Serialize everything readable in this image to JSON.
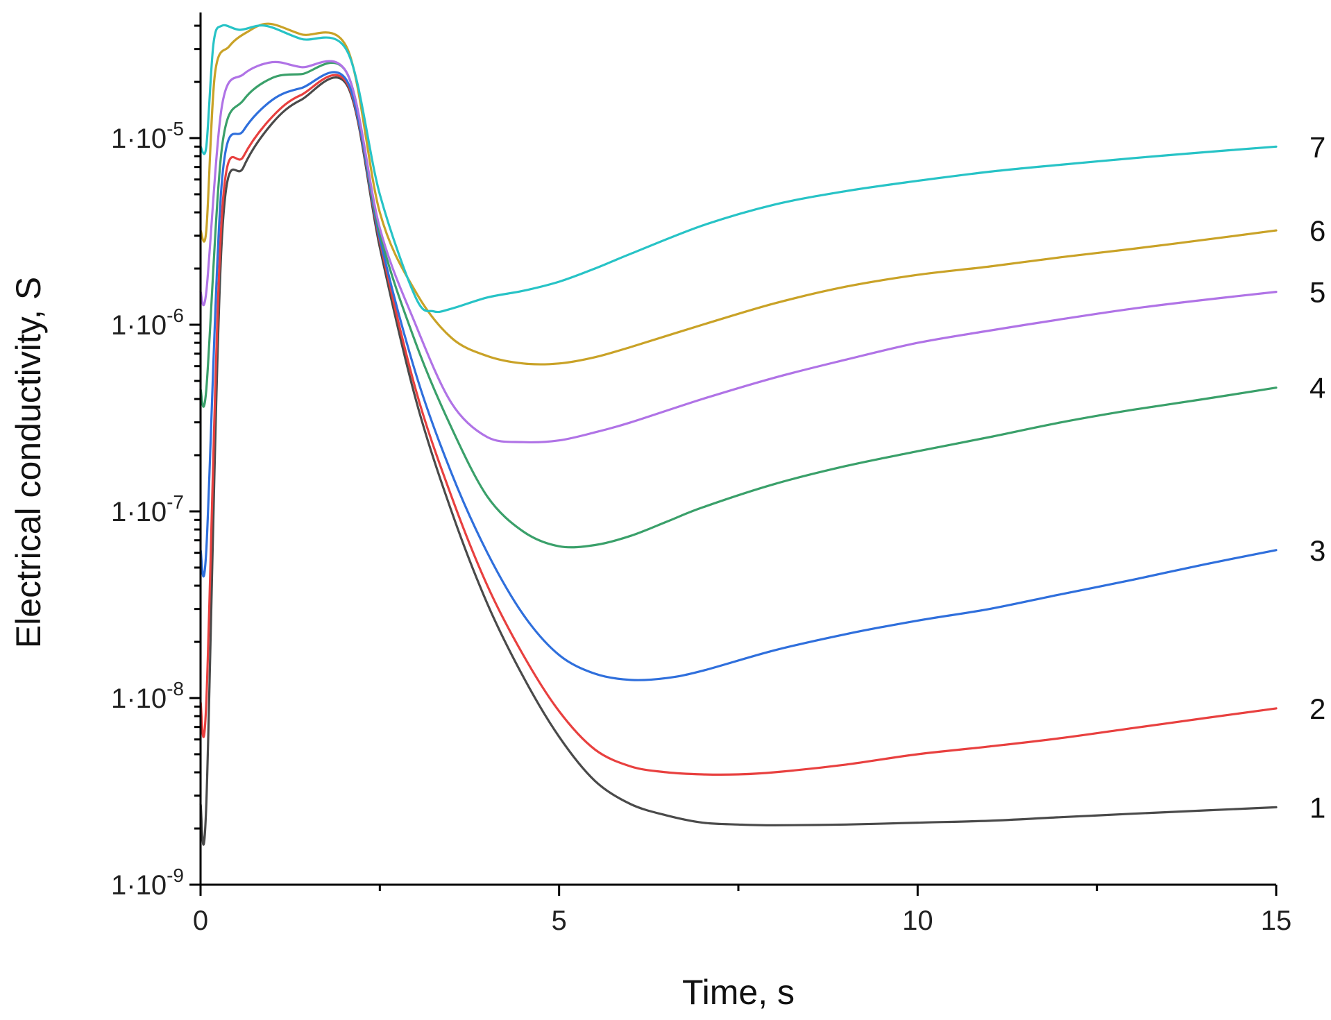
{
  "chart_data": {
    "type": "line",
    "title": "",
    "xlabel": "Time, s",
    "ylabel": "Electrical conductivity, S",
    "yscale": "log",
    "xlim": [
      0,
      15
    ],
    "ylim": [
      1e-09,
      5e-05
    ],
    "grid": false,
    "x_ticks": [
      {
        "value": 0,
        "label": "0"
      },
      {
        "value": 5,
        "label": "5"
      },
      {
        "value": 10,
        "label": "10"
      },
      {
        "value": 15,
        "label": "15"
      }
    ],
    "x_minor_ticks": [
      2.5,
      7.5,
      12.5
    ],
    "y_ticks": [
      {
        "value": 1e-09,
        "mantissa": "1·10",
        "exponent": "-9"
      },
      {
        "value": 1e-08,
        "mantissa": "1·10",
        "exponent": "-8"
      },
      {
        "value": 1e-07,
        "mantissa": "1·10",
        "exponent": "-7"
      },
      {
        "value": 1e-06,
        "mantissa": "1·10",
        "exponent": "-6"
      },
      {
        "value": 1e-05,
        "mantissa": "1·10",
        "exponent": "-5"
      }
    ],
    "series": [
      {
        "name": "1",
        "label": "1",
        "color": "#4a4a4a",
        "x": [
          0,
          0.08,
          0.3,
          0.6,
          1.0,
          1.4,
          2.05,
          2.5,
          3.0,
          3.5,
          4.0,
          4.5,
          5.0,
          5.5,
          6.0,
          6.5,
          7.0,
          7.5,
          8.0,
          9.0,
          10.0,
          11.0,
          12.0,
          13.0,
          14.0,
          15.0
        ],
        "y": [
          2.7e-09,
          2.7e-09,
          3e-06,
          7e-06,
          1.2e-05,
          1.6e-05,
          1.9e-05,
          2.6e-06,
          4e-07,
          1e-07,
          3.2e-08,
          1.3e-08,
          6.2e-09,
          3.6e-09,
          2.7e-09,
          2.35e-09,
          2.15e-09,
          2.1e-09,
          2.08e-09,
          2.1e-09,
          2.15e-09,
          2.2e-09,
          2.3e-09,
          2.4e-09,
          2.5e-09,
          2.6e-09
        ]
      },
      {
        "name": "2",
        "label": "2",
        "color": "#e8403f",
        "x": [
          0,
          0.08,
          0.3,
          0.6,
          1.0,
          1.4,
          2.05,
          2.5,
          3.0,
          3.5,
          4.0,
          4.5,
          5.0,
          5.5,
          6.0,
          6.5,
          7.0,
          7.5,
          8.0,
          9.0,
          10.0,
          11.0,
          12.0,
          13.0,
          14.0,
          15.0
        ],
        "y": [
          9.5e-09,
          9.5e-09,
          4e-06,
          8e-06,
          1.3e-05,
          1.7e-05,
          1.95e-05,
          2.8e-06,
          4.5e-07,
          1.2e-07,
          4e-08,
          1.7e-08,
          8.5e-09,
          5.3e-09,
          4.3e-09,
          4e-09,
          3.9e-09,
          3.9e-09,
          4e-09,
          4.4e-09,
          5e-09,
          5.5e-09,
          6.1e-09,
          6.9e-09,
          7.8e-09,
          8.8e-09
        ]
      },
      {
        "name": "3",
        "label": "3",
        "color": "#2f6fdc",
        "x": [
          0,
          0.08,
          0.3,
          0.6,
          1.0,
          1.4,
          2.05,
          2.5,
          3.0,
          3.5,
          4.0,
          4.5,
          5.0,
          5.5,
          6.0,
          6.5,
          7.0,
          8.0,
          9.0,
          10.0,
          11.0,
          12.0,
          13.0,
          14.0,
          15.0
        ],
        "y": [
          6.2e-08,
          6.2e-08,
          6e-06,
          1.1e-05,
          1.6e-05,
          1.85e-05,
          2e-05,
          2.9e-06,
          5.5e-07,
          1.6e-07,
          6e-08,
          2.8e-08,
          1.7e-08,
          1.35e-08,
          1.25e-08,
          1.28e-08,
          1.4e-08,
          1.8e-08,
          2.2e-08,
          2.6e-08,
          3e-08,
          3.6e-08,
          4.3e-08,
          5.2e-08,
          6.2e-08
        ]
      },
      {
        "name": "4",
        "label": "4",
        "color": "#3aa06a",
        "x": [
          0,
          0.08,
          0.3,
          0.6,
          1.0,
          1.4,
          2.05,
          2.5,
          3.0,
          3.5,
          4.0,
          4.5,
          5.0,
          5.5,
          6.0,
          6.5,
          7.0,
          8.0,
          9.0,
          10.0,
          11.0,
          12.0,
          13.0,
          14.0,
          15.0
        ],
        "y": [
          4.5e-07,
          4.5e-07,
          9e-06,
          1.6e-05,
          2.1e-05,
          2.2e-05,
          2.2e-05,
          3.1e-06,
          8e-07,
          2.8e-07,
          1.2e-07,
          7.8e-08,
          6.5e-08,
          6.6e-08,
          7.4e-08,
          8.8e-08,
          1.05e-07,
          1.4e-07,
          1.75e-07,
          2.1e-07,
          2.5e-07,
          3e-07,
          3.5e-07,
          4e-07,
          4.6e-07
        ]
      },
      {
        "name": "5",
        "label": "5",
        "color": "#b073e6",
        "x": [
          0,
          0.08,
          0.3,
          0.6,
          1.0,
          1.4,
          2.05,
          2.5,
          3.0,
          3.5,
          4.0,
          4.5,
          5.0,
          5.5,
          6.0,
          7.0,
          8.0,
          9.0,
          10.0,
          11.0,
          12.0,
          13.0,
          14.0,
          15.0
        ],
        "y": [
          1.5e-06,
          1.5e-06,
          1.5e-05,
          2.2e-05,
          2.55e-05,
          2.4e-05,
          2.2e-05,
          3.3e-06,
          1e-06,
          3.8e-07,
          2.5e-07,
          2.35e-07,
          2.4e-07,
          2.65e-07,
          3e-07,
          4e-07,
          5.2e-07,
          6.5e-07,
          8e-07,
          9.3e-07,
          1.07e-06,
          1.22e-06,
          1.36e-06,
          1.5e-06
        ]
      },
      {
        "name": "6",
        "label": "6",
        "color": "#c9a227",
        "x": [
          0,
          0.08,
          0.2,
          0.4,
          0.65,
          0.95,
          1.4,
          2.05,
          2.5,
          3.0,
          3.5,
          4.0,
          4.5,
          5.0,
          5.5,
          6.0,
          7.0,
          8.0,
          9.0,
          10.0,
          11.0,
          12.0,
          13.0,
          14.0,
          15.0
        ],
        "y": [
          3.2e-06,
          3.2e-06,
          2.2e-05,
          3.1e-05,
          3.7e-05,
          4.1e-05,
          3.6e-05,
          3e-05,
          4e-06,
          1.5e-06,
          8.5e-07,
          6.8e-07,
          6.2e-07,
          6.2e-07,
          6.7e-07,
          7.6e-07,
          1e-06,
          1.3e-06,
          1.6e-06,
          1.85e-06,
          2.05e-06,
          2.3e-06,
          2.55e-06,
          2.85e-06,
          3.2e-06
        ]
      },
      {
        "name": "7",
        "label": "7",
        "color": "#27c3c6",
        "x": [
          0,
          0.08,
          0.18,
          0.3,
          0.55,
          0.9,
          1.4,
          2.05,
          2.5,
          3.0,
          3.25,
          3.5,
          4.0,
          4.5,
          5.0,
          5.5,
          6.0,
          7.0,
          8.0,
          9.0,
          10.0,
          11.0,
          12.0,
          13.0,
          14.0,
          15.0
        ],
        "y": [
          9e-06,
          9e-06,
          3.2e-05,
          4e-05,
          3.8e-05,
          4e-05,
          3.4e-05,
          2.9e-05,
          5e-06,
          1.4e-06,
          1.18e-06,
          1.22e-06,
          1.4e-06,
          1.52e-06,
          1.7e-06,
          2e-06,
          2.4e-06,
          3.4e-06,
          4.4e-06,
          5.2e-06,
          5.9e-06,
          6.6e-06,
          7.2e-06,
          7.8e-06,
          8.4e-06,
          9e-06
        ]
      }
    ]
  }
}
